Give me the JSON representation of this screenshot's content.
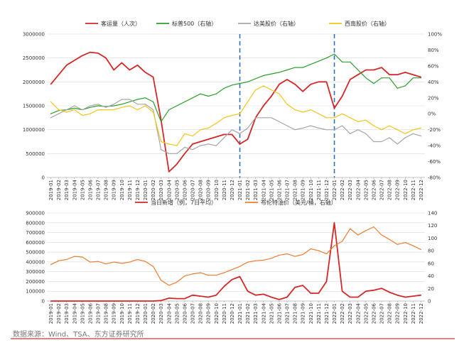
{
  "source_note": "数据来源：Wind、TSA、东方证券研究所",
  "colors": {
    "tsa": "#d62728",
    "sp500": "#2ca02c",
    "delta": "#a6a6a6",
    "southwest": "#f5c518",
    "brent": "#ed7d31",
    "vline": "#2e75b6",
    "bottom_rule": "#c00000"
  },
  "months": [
    "2019-01",
    "2019-02",
    "2019-03",
    "2019-04",
    "2019-05",
    "2019-06",
    "2019-07",
    "2019-08",
    "2019-09",
    "2019-10",
    "2019-11",
    "2019-12",
    "2020-01",
    "2020-02",
    "2020-03",
    "2020-04",
    "2020-05",
    "2020-06",
    "2020-07",
    "2020-08",
    "2020-09",
    "2020-10",
    "2020-11",
    "2020-12",
    "2021-01",
    "2021-02",
    "2021-03",
    "2021-04",
    "2021-05",
    "2021-06",
    "2021-07",
    "2021-08",
    "2021-09",
    "2021-10",
    "2021-11",
    "2021-12",
    "2022-01",
    "2022-02",
    "2022-03",
    "2022-04",
    "2022-05",
    "2022-06",
    "2022-07",
    "2022-08",
    "2022-09",
    "2022-10",
    "2022-11",
    "2022-12"
  ],
  "vertical_markers": [
    "2021-01",
    "2022-01"
  ],
  "chart_data": [
    {
      "type": "line",
      "legend": [
        "客运量（人次）",
        "标普500（右轴）",
        "达美股价（右轴）",
        "西南股价（右轴）"
      ],
      "y_left_ticks": [
        "0",
        "500000",
        "1000000",
        "1500000",
        "2000000",
        "2500000",
        "3000000"
      ],
      "y_right_ticks": [
        "-80%",
        "-60%",
        "-40%",
        "-20%",
        "0%",
        "20%",
        "40%",
        "60%",
        "80%",
        "100%"
      ],
      "ylim_left": [
        0,
        3000000
      ],
      "ylim_right": [
        -0.8,
        1.0
      ],
      "series": [
        {
          "name": "客运量（人次）",
          "axis": "left",
          "values": [
            1950000,
            2150000,
            2350000,
            2450000,
            2550000,
            2620000,
            2600000,
            2500000,
            2250000,
            2400000,
            2250000,
            2350000,
            2200000,
            2100000,
            1200000,
            120000,
            280000,
            500000,
            700000,
            750000,
            800000,
            850000,
            900000,
            900000,
            700000,
            800000,
            1250000,
            1500000,
            1700000,
            1950000,
            2050000,
            1950000,
            1800000,
            1950000,
            2000000,
            2000000,
            1450000,
            1700000,
            2050000,
            2150000,
            2250000,
            2250000,
            2300000,
            2150000,
            2150000,
            2200000,
            2150000,
            2100000
          ]
        },
        {
          "name": "标普500（右轴）",
          "axis": "right",
          "values": [
            0.0,
            0.04,
            0.05,
            0.07,
            0.05,
            0.08,
            0.1,
            0.09,
            0.1,
            0.12,
            0.15,
            0.18,
            0.2,
            0.15,
            -0.1,
            0.05,
            0.1,
            0.15,
            0.2,
            0.25,
            0.22,
            0.25,
            0.32,
            0.36,
            0.38,
            0.4,
            0.44,
            0.48,
            0.5,
            0.52,
            0.55,
            0.58,
            0.58,
            0.62,
            0.66,
            0.7,
            0.75,
            0.65,
            0.65,
            0.55,
            0.45,
            0.38,
            0.45,
            0.45,
            0.32,
            0.35,
            0.45,
            0.45
          ]
        },
        {
          "name": "达美股价（右轴）",
          "axis": "right",
          "values": [
            -0.05,
            0.0,
            0.05,
            0.1,
            0.05,
            0.1,
            0.12,
            0.08,
            0.12,
            0.18,
            0.18,
            0.12,
            0.12,
            0.05,
            -0.45,
            -0.5,
            -0.5,
            -0.42,
            -0.45,
            -0.4,
            -0.38,
            -0.4,
            -0.3,
            -0.2,
            -0.25,
            -0.18,
            -0.05,
            -0.05,
            -0.05,
            -0.1,
            -0.15,
            -0.2,
            -0.18,
            -0.15,
            -0.18,
            -0.2,
            -0.2,
            -0.15,
            -0.25,
            -0.2,
            -0.25,
            -0.35,
            -0.35,
            -0.3,
            -0.38,
            -0.3,
            -0.25,
            -0.28
          ]
        },
        {
          "name": "西南股价（右轴）",
          "axis": "right",
          "values": [
            0.15,
            0.05,
            0.02,
            0.05,
            -0.02,
            0.0,
            0.05,
            0.05,
            0.05,
            0.08,
            0.1,
            0.05,
            0.1,
            0.02,
            -0.35,
            -0.38,
            -0.4,
            -0.25,
            -0.28,
            -0.2,
            -0.18,
            -0.12,
            -0.05,
            -0.02,
            0.0,
            0.15,
            0.3,
            0.35,
            0.3,
            0.25,
            0.12,
            0.05,
            0.02,
            0.05,
            0.0,
            -0.05,
            -0.05,
            0.0,
            -0.05,
            -0.1,
            -0.08,
            -0.15,
            -0.2,
            -0.15,
            -0.2,
            -0.25,
            -0.2,
            -0.18
          ]
        }
      ]
    },
    {
      "type": "line",
      "legend": [
        "当日新增（例，7日平均）",
        "布伦特油价（美元/桶，右轴）"
      ],
      "y_left_ticks": [
        "0",
        "100000",
        "200000",
        "300000",
        "400000",
        "500000",
        "600000",
        "700000",
        "800000",
        "900000"
      ],
      "y_right_ticks": [
        "0",
        "20",
        "40",
        "60",
        "80",
        "100",
        "120",
        "140"
      ],
      "ylim_left": [
        0,
        900000
      ],
      "ylim_right": [
        0,
        140
      ],
      "series": [
        {
          "name": "当日新增（例，7日平均）",
          "axis": "left",
          "values": [
            0,
            0,
            0,
            0,
            0,
            0,
            0,
            0,
            0,
            0,
            0,
            0,
            0,
            0,
            5000,
            30000,
            25000,
            25000,
            60000,
            50000,
            40000,
            60000,
            150000,
            220000,
            250000,
            100000,
            60000,
            70000,
            40000,
            15000,
            40000,
            140000,
            160000,
            80000,
            80000,
            200000,
            800000,
            100000,
            40000,
            40000,
            100000,
            110000,
            130000,
            90000,
            60000,
            40000,
            50000,
            60000
          ]
        },
        {
          "name": "布伦特油价（美元/桶，右轴）",
          "axis": "right",
          "values": [
            58,
            64,
            66,
            71,
            70,
            62,
            63,
            59,
            62,
            60,
            62,
            66,
            63,
            55,
            33,
            25,
            30,
            40,
            43,
            45,
            41,
            41,
            45,
            50,
            55,
            62,
            64,
            65,
            68,
            73,
            75,
            71,
            74,
            83,
            80,
            75,
            88,
            95,
            115,
            105,
            112,
            118,
            105,
            98,
            90,
            93,
            88,
            82
          ]
        }
      ]
    }
  ]
}
